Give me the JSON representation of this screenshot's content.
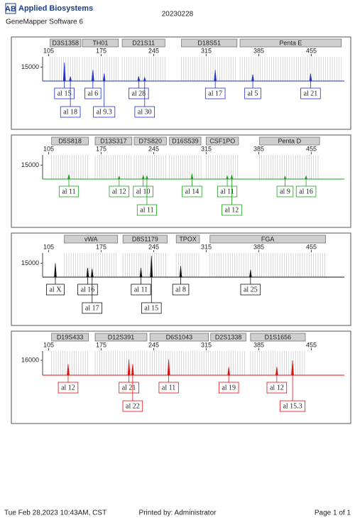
{
  "header": {
    "logo": "AB",
    "brand": "Applied Biosystems",
    "software": "GeneMapper Software 6",
    "date": "20230228"
  },
  "chart_data": [
    {
      "type": "electropherogram",
      "color": "#1a2fd0",
      "xlim": [
        97,
        499
      ],
      "xticks": [
        105,
        175,
        245,
        315,
        385,
        455
      ],
      "ylim": [
        0,
        26000
      ],
      "yticks": [
        15000
      ],
      "markers": [
        {
          "name": "D3S1358",
          "start": 107,
          "end": 148
        },
        {
          "name": "TH01",
          "start": 150,
          "end": 198
        },
        {
          "name": "D21S11",
          "start": 203,
          "end": 260
        },
        {
          "name": "D18S51",
          "start": 282,
          "end": 356
        },
        {
          "name": "Penta E",
          "start": 360,
          "end": 495
        }
      ],
      "peaks": [
        {
          "allele": "al 15",
          "size": 126,
          "height": 20000
        },
        {
          "allele": "al 18",
          "size": 134,
          "height": 5000
        },
        {
          "allele": "al 6",
          "size": 164,
          "height": 12000
        },
        {
          "allele": "al 9.3",
          "size": 179,
          "height": 8000
        },
        {
          "allele": "al 28",
          "size": 225,
          "height": 5000
        },
        {
          "allele": "al 30",
          "size": 233,
          "height": 4000
        },
        {
          "allele": "al 17",
          "size": 327,
          "height": 12000
        },
        {
          "allele": "al 5",
          "size": 377,
          "height": 7000
        },
        {
          "allele": "al 21",
          "size": 454,
          "height": 8000
        }
      ]
    },
    {
      "type": "electropherogram",
      "color": "#1aa01a",
      "xlim": [
        97,
        499
      ],
      "xticks": [
        105,
        175,
        245,
        315,
        385,
        455
      ],
      "ylim": [
        0,
        26000
      ],
      "yticks": [
        15000
      ],
      "markers": [
        {
          "name": "D5S818",
          "start": 109,
          "end": 158
        },
        {
          "name": "D13S317",
          "start": 167,
          "end": 216
        },
        {
          "name": "D7S820",
          "start": 219,
          "end": 262
        },
        {
          "name": "D16S539",
          "start": 266,
          "end": 308
        },
        {
          "name": "CSF1PO",
          "start": 315,
          "end": 358
        },
        {
          "name": "Penta D",
          "start": 386,
          "end": 466
        }
      ],
      "peaks": [
        {
          "allele": "al 11",
          "size": 132,
          "height": 5000
        },
        {
          "allele": "al 12",
          "size": 199,
          "height": 3000
        },
        {
          "allele": "al 10",
          "size": 231,
          "height": 4000
        },
        {
          "allele": "al 11",
          "size": 236,
          "height": 3500
        },
        {
          "allele": "al 14",
          "size": 296,
          "height": 6000
        },
        {
          "allele": "al 11",
          "size": 343,
          "height": 3500
        },
        {
          "allele": "al 12",
          "size": 349,
          "height": 4000
        },
        {
          "allele": "al 9",
          "size": 420,
          "height": 3000
        },
        {
          "allele": "al 16",
          "size": 448,
          "height": 3500
        }
      ]
    },
    {
      "type": "electropherogram",
      "color": "#111111",
      "xlim": [
        97,
        499
      ],
      "xticks": [
        105,
        175,
        245,
        315,
        385,
        455
      ],
      "ylim": [
        0,
        26000
      ],
      "yticks": [
        15000
      ],
      "markers": [
        {
          "name": "vWA",
          "start": 126,
          "end": 197
        },
        {
          "name": "D8S1179",
          "start": 204,
          "end": 263
        },
        {
          "name": "TPOX",
          "start": 275,
          "end": 306
        },
        {
          "name": "FGA",
          "start": 320,
          "end": 474
        }
      ],
      "peaks": [
        {
          "allele": "al X",
          "size": 114,
          "height": 15000
        },
        {
          "allele": "al 16",
          "size": 157,
          "height": 10000
        },
        {
          "allele": "al 17",
          "size": 163,
          "height": 9000
        },
        {
          "allele": "al 11",
          "size": 228,
          "height": 10000
        },
        {
          "allele": "al 15",
          "size": 242,
          "height": 23000
        },
        {
          "allele": "al 8",
          "size": 281,
          "height": 12000
        },
        {
          "allele": "al 25",
          "size": 374,
          "height": 8000
        }
      ]
    },
    {
      "type": "electropherogram",
      "color": "#e01010",
      "xlim": [
        97,
        499
      ],
      "xticks": [
        105,
        175,
        245,
        315,
        385,
        455
      ],
      "ylim": [
        0,
        26000
      ],
      "yticks": [
        16000
      ],
      "markers": [
        {
          "name": "D19S433",
          "start": 109,
          "end": 158
        },
        {
          "name": "D12S391",
          "start": 167,
          "end": 236
        },
        {
          "name": "D6S1043",
          "start": 240,
          "end": 318
        },
        {
          "name": "D2S1338",
          "start": 321,
          "end": 368
        },
        {
          "name": "D1S1656",
          "start": 374,
          "end": 447
        }
      ],
      "peaks": [
        {
          "allele": "al 12",
          "size": 131,
          "height": 12000
        },
        {
          "allele": "al 21",
          "size": 212,
          "height": 17000
        },
        {
          "allele": "al 22",
          "size": 217,
          "height": 12000
        },
        {
          "allele": "al 11",
          "size": 265,
          "height": 17000
        },
        {
          "allele": "al 19",
          "size": 345,
          "height": 9000
        },
        {
          "allele": "al 12",
          "size": 409,
          "height": 9000
        },
        {
          "allele": "al 15.3",
          "size": 430,
          "height": 16000
        }
      ]
    }
  ],
  "footer": {
    "timestamp": "Tue Feb 28,2023 10:43AM, CST",
    "printed_by": "Printed by: Administrator",
    "page": "Page 1 of 1"
  }
}
